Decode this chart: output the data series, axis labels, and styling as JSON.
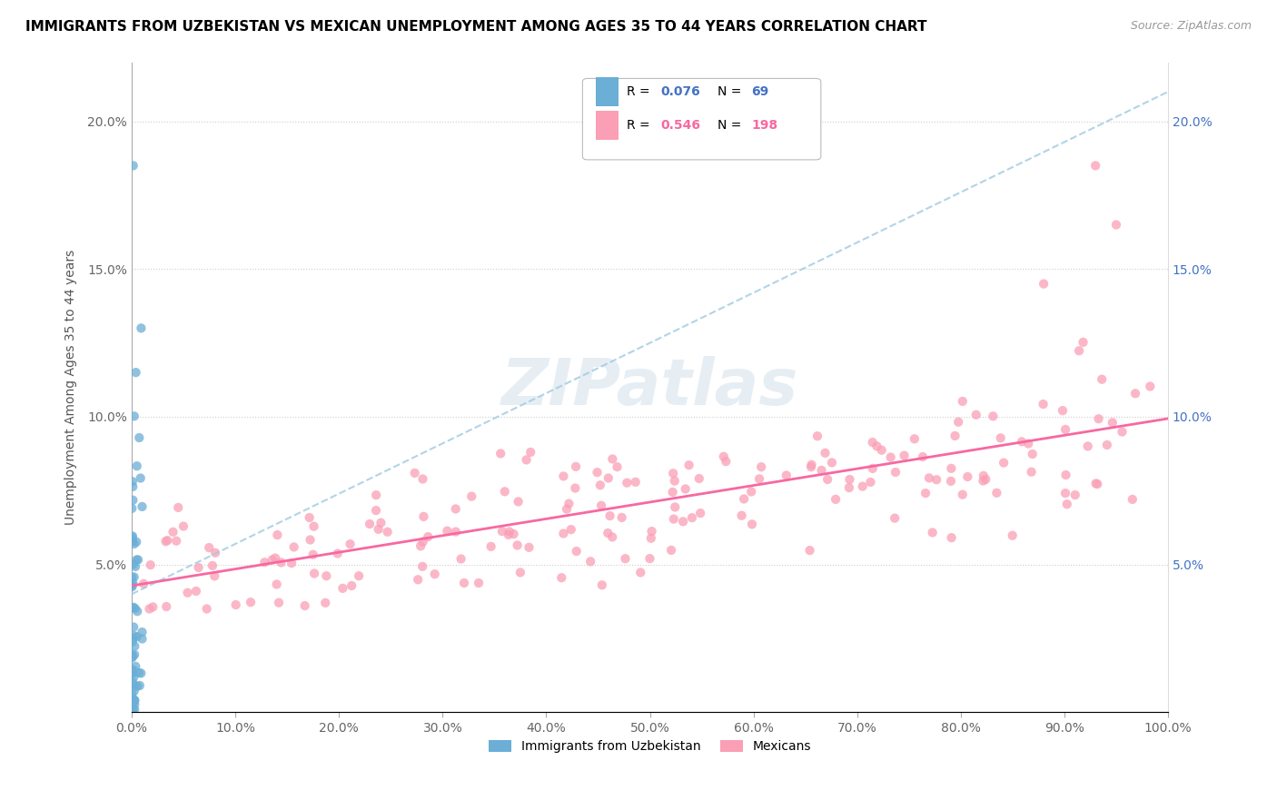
{
  "title": "IMMIGRANTS FROM UZBEKISTAN VS MEXICAN UNEMPLOYMENT AMONG AGES 35 TO 44 YEARS CORRELATION CHART",
  "source": "Source: ZipAtlas.com",
  "ylabel": "Unemployment Among Ages 35 to 44 years",
  "xlim": [
    0,
    1.0
  ],
  "ylim": [
    0,
    0.22
  ],
  "legend_r1": "0.076",
  "legend_n1": "69",
  "legend_r2": "0.546",
  "legend_n2": "198",
  "color_uzbek": "#6baed6",
  "color_mexican": "#fa9fb5",
  "color_uzbek_line": "#9ecae1",
  "color_mexican_line": "#f768a1",
  "title_fontsize": 11,
  "source_fontsize": 9,
  "tick_fontsize": 10
}
